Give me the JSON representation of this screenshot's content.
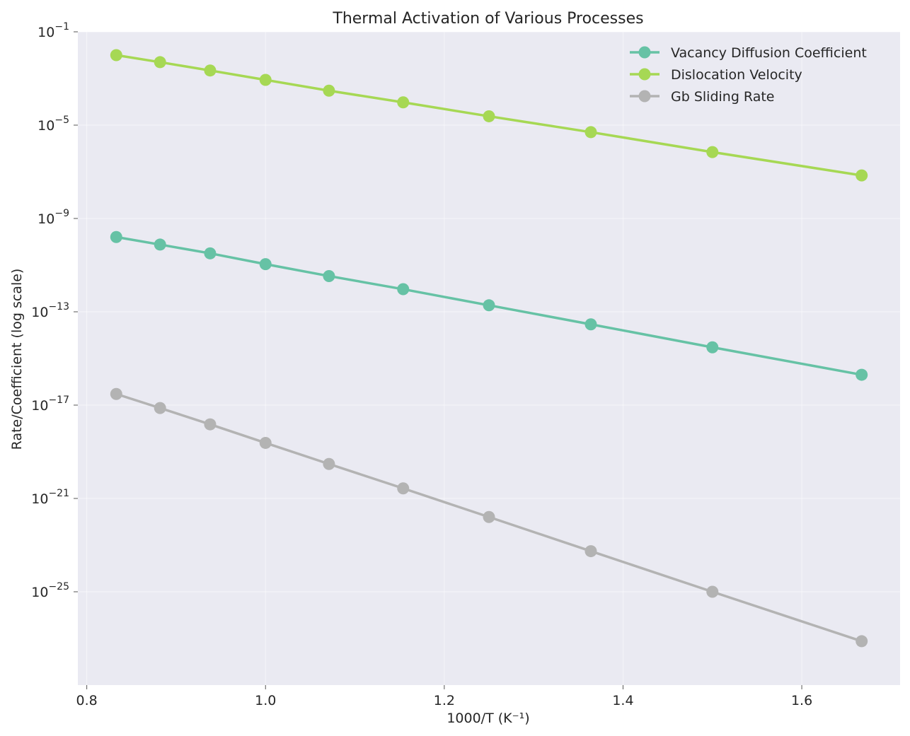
{
  "chart_data": {
    "type": "line",
    "title": "Thermal Activation of Various Processes",
    "xlabel": "1000/T (K⁻¹)",
    "ylabel": "Rate/Coefficient (log scale)",
    "xlim": [
      0.79,
      1.71
    ],
    "ylim": [
      1e-29,
      0.1
    ],
    "yscale": "log",
    "x_ticks": [
      {
        "value": 0.8,
        "label": "0.8"
      },
      {
        "value": 1.0,
        "label": "1.0"
      },
      {
        "value": 1.2,
        "label": "1.2"
      },
      {
        "value": 1.4,
        "label": "1.4"
      },
      {
        "value": 1.6,
        "label": "1.6"
      }
    ],
    "y_ticks": [
      {
        "value": -1,
        "base": "10",
        "exponent": "−1"
      },
      {
        "value": -5,
        "base": "10",
        "exponent": "−5"
      },
      {
        "value": -9,
        "base": "10",
        "exponent": "−9"
      },
      {
        "value": -13,
        "base": "10",
        "exponent": "−13"
      },
      {
        "value": -17,
        "base": "10",
        "exponent": "−17"
      },
      {
        "value": -21,
        "base": "10",
        "exponent": "−21"
      },
      {
        "value": -25,
        "base": "10",
        "exponent": "−25"
      }
    ],
    "grid": true,
    "legend_position": "top-right",
    "x": [
      0.833,
      0.882,
      0.938,
      1.0,
      1.071,
      1.154,
      1.25,
      1.364,
      1.5,
      1.667
    ],
    "series": [
      {
        "name": "Vacancy Diffusion Coefficient",
        "color": "#66c2a5",
        "values": [
          1.6e-10,
          7.6e-11,
          3.2e-11,
          1.1e-11,
          3.4e-12,
          9.3e-13,
          1.9e-13,
          2.9e-14,
          3e-15,
          2e-16
        ]
      },
      {
        "name": "Dislocation Velocity",
        "color": "#a6d854",
        "values": [
          0.01,
          0.005,
          0.0022,
          0.00087,
          0.0003,
          9.5e-05,
          2.4e-05,
          5e-06,
          7e-07,
          7e-08
        ]
      },
      {
        "name": "Gb Sliding Rate",
        "color": "#b3b3b3",
        "values": [
          3e-17,
          7.5e-18,
          1.5e-18,
          2.4e-19,
          3e-20,
          2.7e-21,
          1.6e-22,
          5.5e-24,
          1e-25,
          7.6e-28
        ]
      }
    ]
  }
}
